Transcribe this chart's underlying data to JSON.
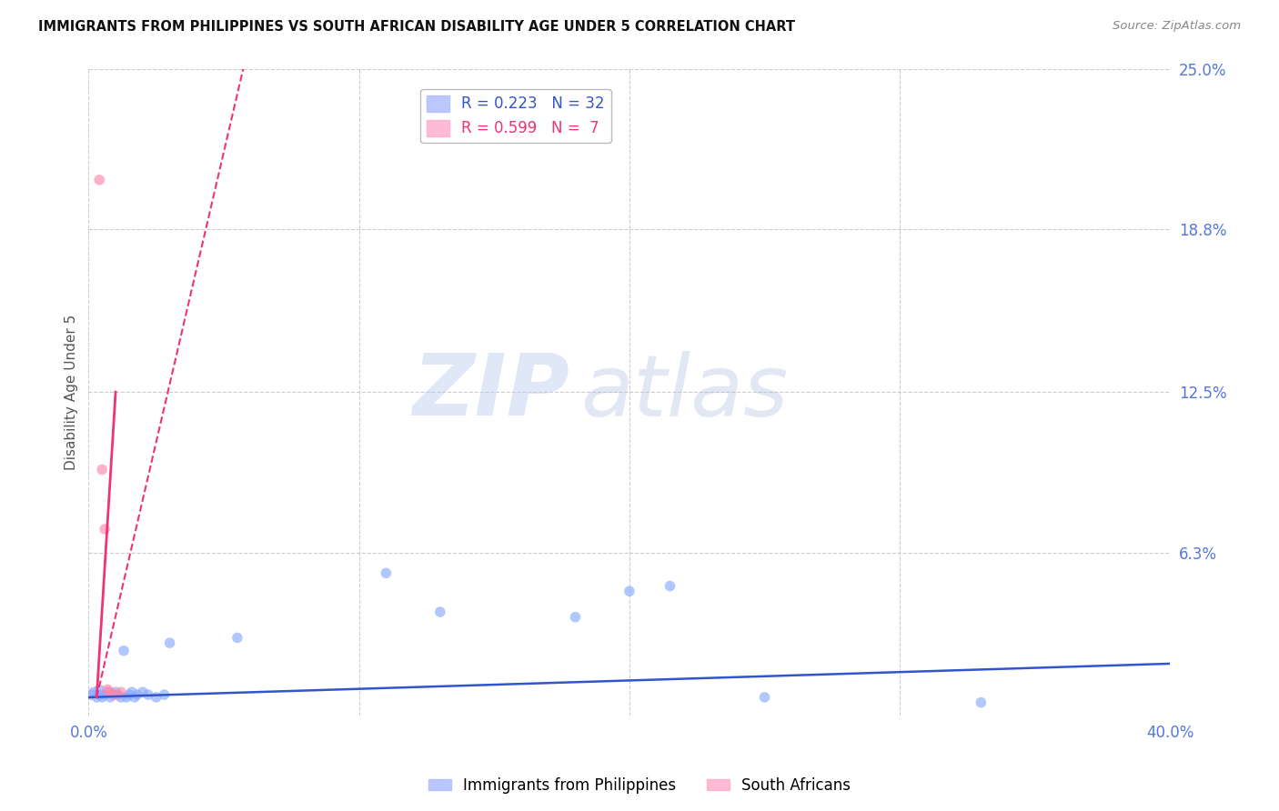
{
  "title": "IMMIGRANTS FROM PHILIPPINES VS SOUTH AFRICAN DISABILITY AGE UNDER 5 CORRELATION CHART",
  "source": "Source: ZipAtlas.com",
  "ylabel": "Disability Age Under 5",
  "watermark_zip": "ZIP",
  "watermark_atlas": "atlas",
  "xlim": [
    0.0,
    0.4
  ],
  "ylim": [
    0.0,
    0.25
  ],
  "xticks": [
    0.0,
    0.4
  ],
  "xtick_labels": [
    "0.0%",
    "40.0%"
  ],
  "ytick_labels_right": [
    "6.3%",
    "12.5%",
    "18.8%",
    "25.0%"
  ],
  "yticks_right": [
    0.063,
    0.125,
    0.188,
    0.25
  ],
  "philippines_scatter": {
    "x": [
      0.001,
      0.002,
      0.003,
      0.004,
      0.004,
      0.005,
      0.006,
      0.007,
      0.008,
      0.009,
      0.01,
      0.011,
      0.012,
      0.013,
      0.014,
      0.015,
      0.016,
      0.017,
      0.018,
      0.02,
      0.022,
      0.025,
      0.028,
      0.03,
      0.055,
      0.11,
      0.13,
      0.18,
      0.2,
      0.215,
      0.25,
      0.33
    ],
    "y": [
      0.008,
      0.009,
      0.007,
      0.008,
      0.01,
      0.007,
      0.008,
      0.009,
      0.007,
      0.008,
      0.009,
      0.008,
      0.007,
      0.025,
      0.007,
      0.008,
      0.009,
      0.007,
      0.008,
      0.009,
      0.008,
      0.007,
      0.008,
      0.028,
      0.03,
      0.055,
      0.04,
      0.038,
      0.048,
      0.05,
      0.007,
      0.005
    ],
    "color": "#88aaff",
    "alpha": 0.65,
    "size": 70
  },
  "southafrica_scatter": {
    "x": [
      0.004,
      0.005,
      0.006,
      0.007,
      0.008,
      0.01,
      0.012
    ],
    "y": [
      0.207,
      0.095,
      0.072,
      0.01,
      0.009,
      0.008,
      0.009
    ],
    "color": "#ff88aa",
    "alpha": 0.65,
    "size": 70
  },
  "philippines_line": {
    "x": [
      0.0,
      0.4
    ],
    "y": [
      0.007,
      0.02
    ],
    "color": "#3355cc",
    "linewidth": 1.8,
    "linestyle": "solid"
  },
  "southafrica_line_solid": {
    "x": [
      0.003,
      0.01
    ],
    "y": [
      0.007,
      0.125
    ],
    "color": "#ee3377",
    "linewidth": 2.0,
    "linestyle": "solid"
  },
  "southafrica_line_dashed": {
    "x": [
      0.003,
      0.065
    ],
    "y": [
      0.007,
      0.285
    ],
    "color": "#ee3377",
    "linewidth": 1.5,
    "linestyle": "dashed"
  },
  "grid_color": "#cccccc",
  "bg_color": "#ffffff",
  "title_color": "#111111",
  "axis_label_color": "#555555",
  "right_tick_color": "#5577dd",
  "bottom_tick_color": "#5577dd"
}
